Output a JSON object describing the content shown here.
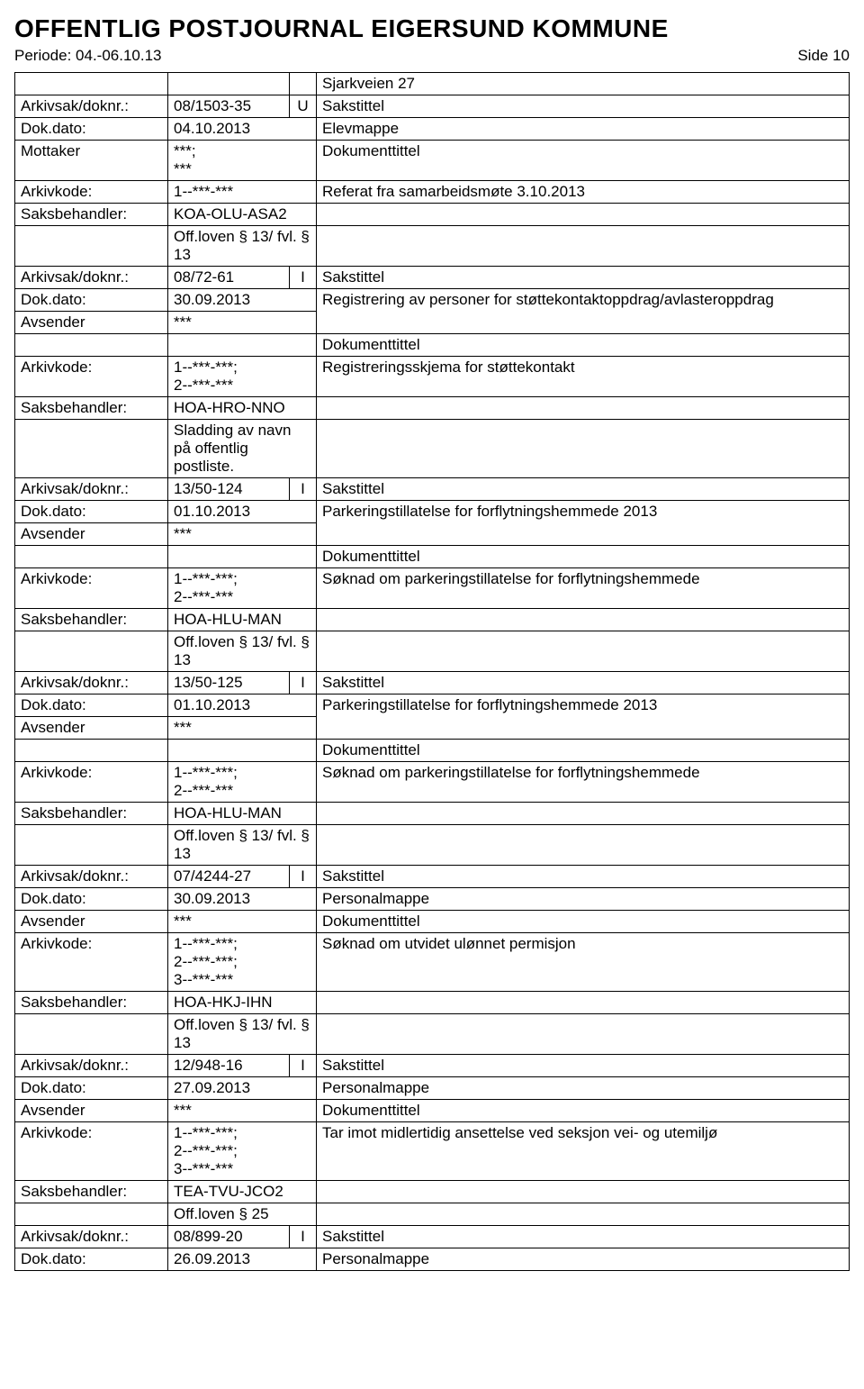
{
  "header": {
    "title": "OFFENTLIG POSTJOURNAL EIGERSUND KOMMUNE",
    "period_label": "Periode: 04.-06.10.13",
    "page_label": "Side 10"
  },
  "rows": [
    {
      "cells": [
        "",
        "",
        "",
        "Sjarkveien 27"
      ]
    },
    {
      "cells": [
        "Arkivsak/doknr.:",
        "08/1503-35",
        "U",
        "Sakstittel"
      ]
    },
    {
      "cells": [
        "Dok.dato:",
        "04.10.2013",
        "Elevmappe"
      ],
      "spanLast": 2
    },
    {
      "cells": [
        "Mottaker",
        "***;\n***",
        "Dokumenttittel"
      ],
      "spanLast": 2
    },
    {
      "cells": [
        "Arkivkode:",
        "1--***-***",
        "Referat fra samarbeidsmøte 3.10.2013"
      ],
      "spanLast": 2
    },
    {
      "cells": [
        "Saksbehandler:",
        "KOA-OLU-ASA2",
        ""
      ],
      "spanLast": 2
    },
    {
      "cells": [
        "",
        "Off.loven § 13/ fvl. § 13",
        ""
      ],
      "spanLast": 2
    },
    {
      "cells": [
        "Arkivsak/doknr.:",
        "08/72-61",
        "I",
        "Sakstittel"
      ]
    },
    {
      "cells": [
        "Dok.dato:",
        "30.09.2013",
        "Registrering av personer for støttekontaktoppdrag/avlasteroppdrag"
      ],
      "spanLast": 2,
      "rowspanDesc": 2
    },
    {
      "cells": [
        "Avsender",
        "***"
      ],
      "continued": true
    },
    {
      "cells": [
        "",
        "",
        "Dokumenttittel"
      ],
      "spanLast": 2
    },
    {
      "cells": [
        "Arkivkode:",
        "1--***-***;\n2--***-***",
        "Registreringsskjema for støttekontakt"
      ],
      "spanLast": 2
    },
    {
      "cells": [
        "Saksbehandler:",
        "HOA-HRO-NNO",
        ""
      ],
      "spanLast": 2
    },
    {
      "cells": [
        "",
        "Sladding av navn på offentlig postliste.",
        ""
      ],
      "spanLast": 2
    },
    {
      "cells": [
        "Arkivsak/doknr.:",
        "13/50-124",
        "I",
        "Sakstittel"
      ]
    },
    {
      "cells": [
        "Dok.dato:",
        "01.10.2013",
        "Parkeringstillatelse for forflytningshemmede 2013"
      ],
      "spanLast": 2,
      "rowspanDesc": 2
    },
    {
      "cells": [
        "Avsender",
        "***"
      ],
      "continued": true
    },
    {
      "cells": [
        "",
        "",
        "Dokumenttittel"
      ],
      "spanLast": 2
    },
    {
      "cells": [
        "Arkivkode:",
        "1--***-***;\n2--***-***",
        "Søknad om parkeringstillatelse for forflytningshemmede"
      ],
      "spanLast": 2
    },
    {
      "cells": [
        "Saksbehandler:",
        "HOA-HLU-MAN",
        ""
      ],
      "spanLast": 2
    },
    {
      "cells": [
        "",
        "Off.loven § 13/ fvl. § 13",
        ""
      ],
      "spanLast": 2
    },
    {
      "cells": [
        "Arkivsak/doknr.:",
        "13/50-125",
        "I",
        "Sakstittel"
      ]
    },
    {
      "cells": [
        "Dok.dato:",
        "01.10.2013",
        "Parkeringstillatelse for forflytningshemmede 2013"
      ],
      "spanLast": 2,
      "rowspanDesc": 2
    },
    {
      "cells": [
        "Avsender",
        "***"
      ],
      "continued": true
    },
    {
      "cells": [
        "",
        "",
        "Dokumenttittel"
      ],
      "spanLast": 2
    },
    {
      "cells": [
        "Arkivkode:",
        "1--***-***;\n2--***-***",
        "Søknad om parkeringstillatelse for forflytningshemmede"
      ],
      "spanLast": 2
    },
    {
      "cells": [
        "Saksbehandler:",
        "HOA-HLU-MAN",
        ""
      ],
      "spanLast": 2
    },
    {
      "cells": [
        "",
        "Off.loven § 13/ fvl. § 13",
        ""
      ],
      "spanLast": 2
    },
    {
      "cells": [
        "Arkivsak/doknr.:",
        "07/4244-27",
        "I",
        "Sakstittel"
      ]
    },
    {
      "cells": [
        "Dok.dato:",
        "30.09.2013",
        "Personalmappe"
      ],
      "spanLast": 2
    },
    {
      "cells": [
        "Avsender",
        "***",
        "Dokumenttittel"
      ],
      "spanLast": 2
    },
    {
      "cells": [
        "Arkivkode:",
        "1--***-***;\n2--***-***;\n3--***-***",
        "Søknad om utvidet ulønnet permisjon"
      ],
      "spanLast": 2
    },
    {
      "cells": [
        "Saksbehandler:",
        "HOA-HKJ-IHN",
        ""
      ],
      "spanLast": 2
    },
    {
      "cells": [
        "",
        "Off.loven § 13/ fvl. § 13",
        ""
      ],
      "spanLast": 2
    },
    {
      "cells": [
        "Arkivsak/doknr.:",
        "12/948-16",
        "I",
        "Sakstittel"
      ]
    },
    {
      "cells": [
        "Dok.dato:",
        "27.09.2013",
        "Personalmappe"
      ],
      "spanLast": 2
    },
    {
      "cells": [
        "Avsender",
        "***",
        "Dokumenttittel"
      ],
      "spanLast": 2
    },
    {
      "cells": [
        "Arkivkode:",
        "1--***-***;\n2--***-***;\n3--***-***",
        "Tar imot midlertidig ansettelse ved seksjon vei- og utemiljø"
      ],
      "spanLast": 2
    },
    {
      "cells": [
        "Saksbehandler:",
        "TEA-TVU-JCO2",
        ""
      ],
      "spanLast": 2
    },
    {
      "cells": [
        "",
        "Off.loven § 25",
        ""
      ],
      "spanLast": 2
    },
    {
      "cells": [
        "Arkivsak/doknr.:",
        "08/899-20",
        "I",
        "Sakstittel"
      ]
    },
    {
      "cells": [
        "Dok.dato:",
        "26.09.2013",
        "Personalmappe"
      ],
      "spanLast": 2
    }
  ]
}
